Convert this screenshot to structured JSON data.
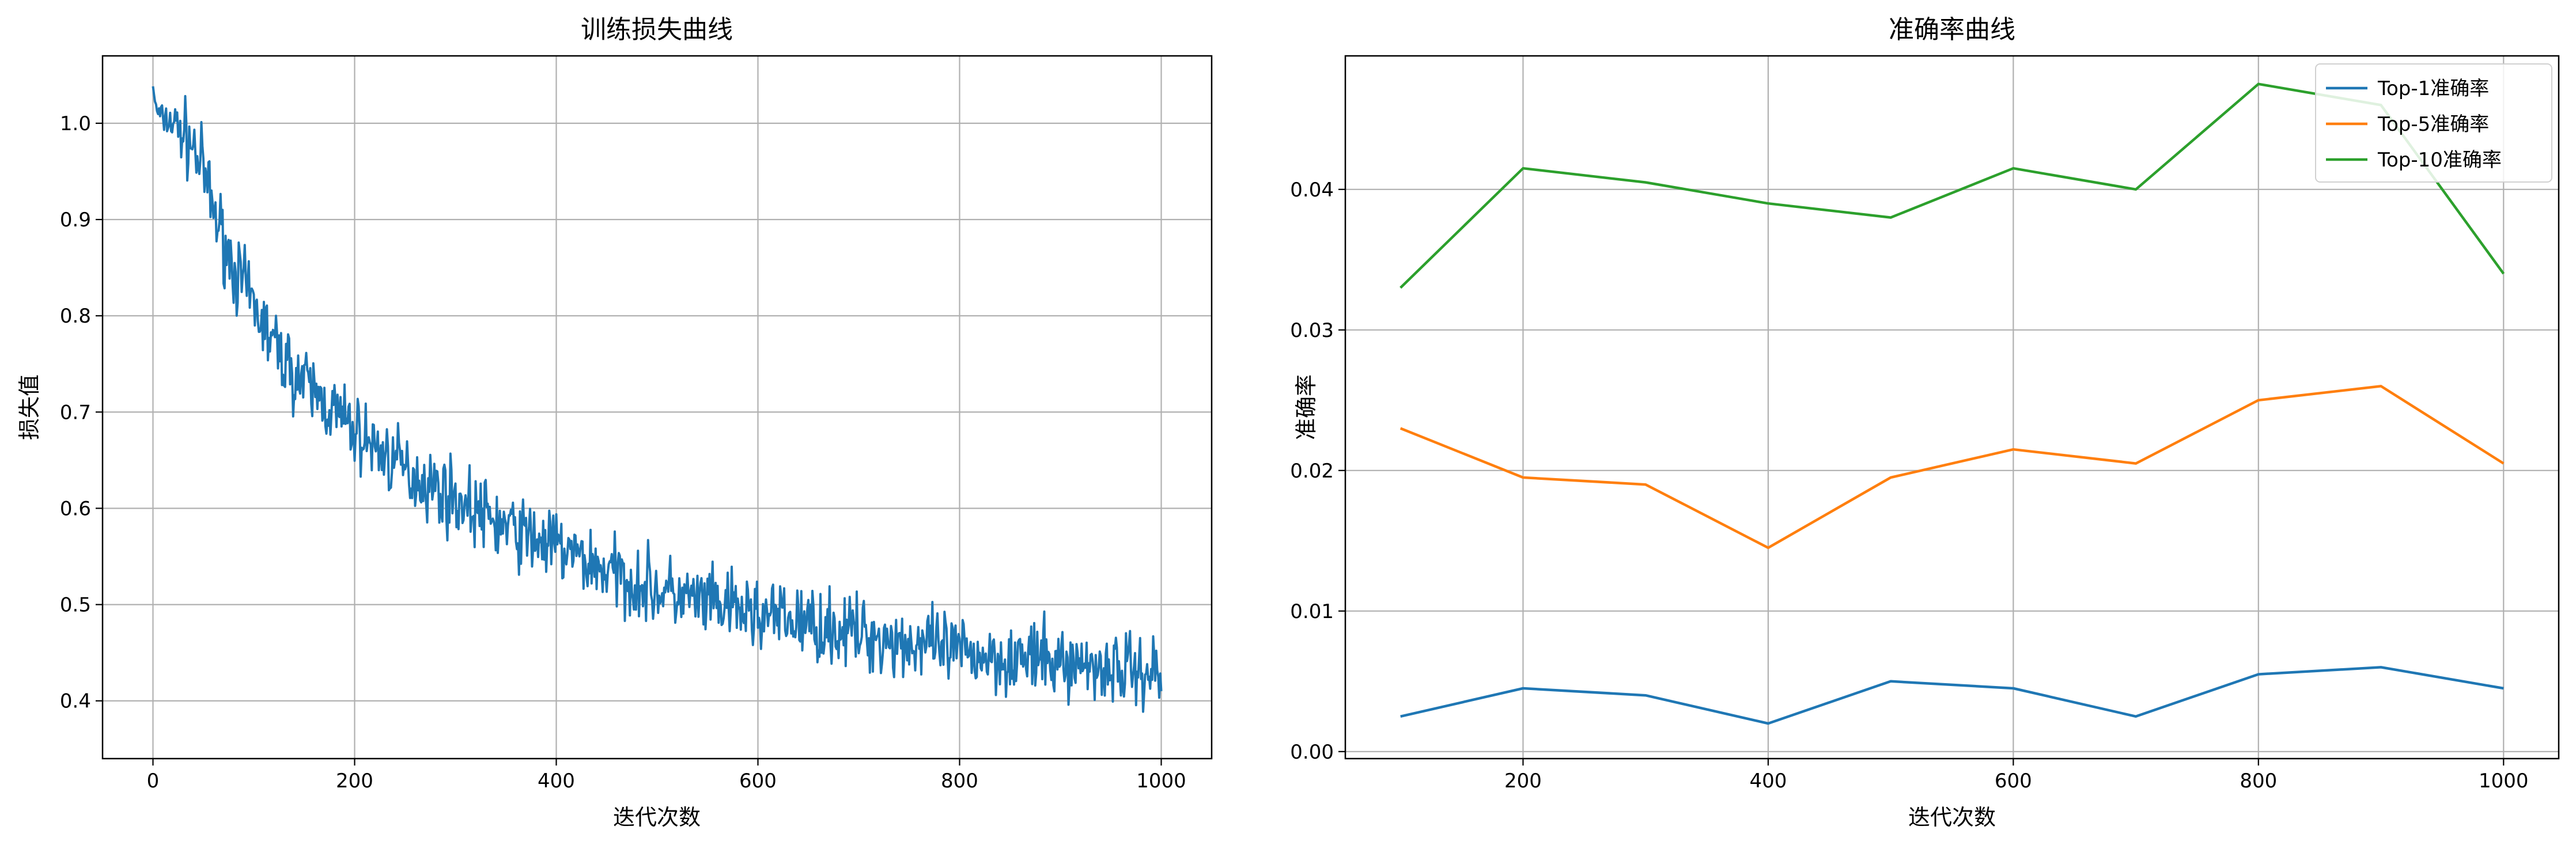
{
  "chart_data": [
    {
      "type": "line",
      "title": "训练损失曲线",
      "xlabel": "迭代次数",
      "ylabel": "损失值",
      "xlim": [
        -50,
        1050
      ],
      "ylim": [
        0.34,
        1.07
      ],
      "xticks": [
        0,
        200,
        400,
        600,
        800,
        1000
      ],
      "xtick_labels": [
        "0",
        "200",
        "400",
        "600",
        "800",
        "1000"
      ],
      "yticks": [
        0.4,
        0.5,
        0.6,
        0.7,
        0.8,
        0.9,
        1.0
      ],
      "ytick_labels": [
        "0.4",
        "0.5",
        "0.6",
        "0.7",
        "0.8",
        "0.9",
        "1.0"
      ],
      "grid": true,
      "series": [
        {
          "color": "#1f77b4",
          "x_start": 0,
          "x_end": 1000,
          "x_step": 1,
          "mean_anchors": {
            "x": [
              0,
              2,
              5,
              10,
              20,
              30,
              40,
              50,
              60,
              70,
              80,
              90,
              100,
              120,
              140,
              160,
              180,
              200,
              250,
              300,
              350,
              400,
              450,
              500,
              550,
              600,
              650,
              700,
              750,
              800,
              850,
              900,
              950,
              1000
            ],
            "y": [
              1.04,
              1.02,
              1.01,
              1.005,
              1.0,
              0.99,
              0.975,
              0.95,
              0.91,
              0.88,
              0.85,
              0.83,
              0.81,
              0.77,
              0.74,
              0.72,
              0.7,
              0.68,
              0.64,
              0.61,
              0.58,
              0.56,
              0.535,
              0.515,
              0.5,
              0.49,
              0.48,
              0.47,
              0.46,
              0.45,
              0.445,
              0.44,
              0.435,
              0.43
            ]
          },
          "noise_amplitude": 0.028,
          "noise_seed": 7
        }
      ]
    },
    {
      "type": "line",
      "title": "准确率曲线",
      "xlabel": "迭代次数",
      "ylabel": "准确率",
      "xlim": [
        55,
        1045
      ],
      "ylim": [
        -0.0005,
        0.0495
      ],
      "xticks": [
        200,
        400,
        600,
        800,
        1000
      ],
      "xtick_labels": [
        "200",
        "400",
        "600",
        "800",
        "1000"
      ],
      "yticks": [
        0.0,
        0.01,
        0.02,
        0.03,
        0.04
      ],
      "ytick_labels": [
        "0.00",
        "0.01",
        "0.02",
        "0.03",
        "0.04"
      ],
      "grid": true,
      "legend_position": "top-right",
      "x": [
        100,
        200,
        300,
        400,
        500,
        600,
        700,
        800,
        900,
        1000
      ],
      "series": [
        {
          "name": "Top-1准确率",
          "color": "#1f77b4",
          "values": [
            0.0025,
            0.0045,
            0.004,
            0.002,
            0.005,
            0.0045,
            0.0025,
            0.0055,
            0.006,
            0.0045
          ]
        },
        {
          "name": "Top-5准确率",
          "color": "#ff7f0e",
          "values": [
            0.023,
            0.0195,
            0.019,
            0.0145,
            0.0195,
            0.0215,
            0.0205,
            0.025,
            0.026,
            0.0205
          ]
        },
        {
          "name": "Top-10准确率",
          "color": "#2ca02c",
          "values": [
            0.033,
            0.0415,
            0.0405,
            0.039,
            0.038,
            0.0415,
            0.04,
            0.0475,
            0.046,
            0.034
          ]
        }
      ]
    }
  ]
}
